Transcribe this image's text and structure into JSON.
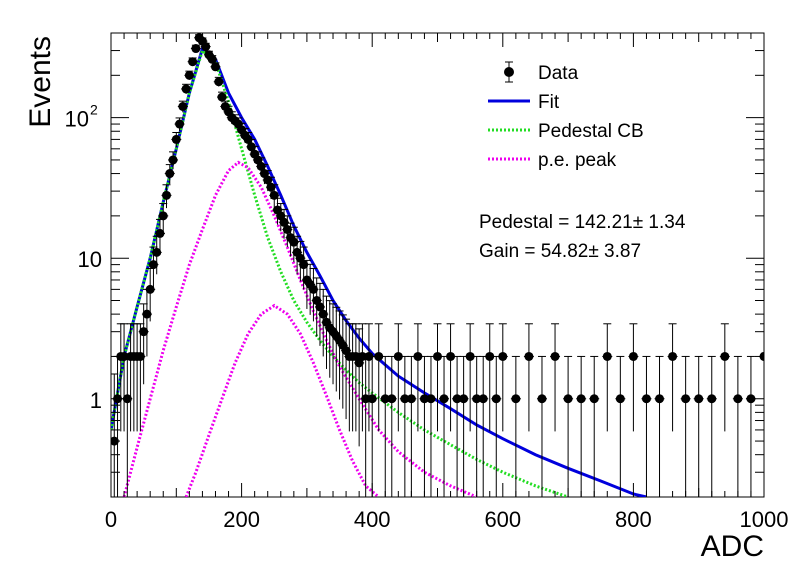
{
  "chart_data": {
    "type": "line",
    "xlabel": "ADC",
    "ylabel": "Events",
    "xlim": [
      0,
      1000
    ],
    "ylim": [
      0.2,
      400
    ],
    "yscale": "log",
    "grid": false,
    "legend_position": "top-right",
    "x_ticks": [
      "0",
      "200",
      "400",
      "600",
      "800",
      "1000"
    ],
    "y_ticks": [
      {
        "value": 1,
        "label": "1",
        "exp": ""
      },
      {
        "value": 10,
        "label": "10",
        "exp": ""
      },
      {
        "value": 100,
        "label": "10",
        "exp": "2"
      }
    ],
    "legend": [
      {
        "label": "Data",
        "style": "marker",
        "color": "#000000"
      },
      {
        "label": "Fit",
        "style": "solid",
        "color": "#0000dd"
      },
      {
        "label": "Pedestal CB",
        "style": "dotted",
        "color": "#22dd22"
      },
      {
        "label": "p.e. peak",
        "style": "dotted",
        "color": "#ee00ee"
      }
    ],
    "annotations": [
      "Pedestal = 142.21± 1.34",
      "Gain = 54.82± 3.87"
    ],
    "series": [
      {
        "name": "Data",
        "style": "points",
        "color": "#000000",
        "x": [
          5,
          10,
          15,
          20,
          25,
          30,
          35,
          40,
          45,
          50,
          55,
          60,
          65,
          70,
          75,
          80,
          85,
          90,
          95,
          100,
          105,
          110,
          115,
          120,
          125,
          130,
          135,
          140,
          145,
          150,
          155,
          160,
          165,
          170,
          175,
          180,
          185,
          190,
          195,
          200,
          205,
          210,
          215,
          220,
          225,
          230,
          235,
          240,
          245,
          250,
          255,
          260,
          265,
          270,
          275,
          280,
          285,
          290,
          295,
          300,
          305,
          310,
          315,
          320,
          325,
          330,
          335,
          340,
          345,
          350,
          355,
          360,
          365,
          370,
          375,
          380,
          385,
          390,
          395,
          400,
          410,
          420,
          430,
          440,
          450,
          460,
          470,
          480,
          490,
          500,
          510,
          520,
          530,
          540,
          550,
          560,
          570,
          580,
          590,
          600,
          620,
          640,
          660,
          680,
          700,
          720,
          740,
          760,
          780,
          800,
          820,
          840,
          860,
          880,
          900,
          920,
          940,
          960,
          980,
          1000
        ],
        "y": [
          0.5,
          1,
          2,
          2,
          1,
          2,
          2,
          2,
          2,
          3,
          4,
          6,
          9,
          11,
          15,
          20,
          28,
          40,
          50,
          70,
          90,
          120,
          160,
          200,
          250,
          310,
          370,
          350,
          320,
          280,
          260,
          230,
          180,
          140,
          120,
          110,
          100,
          95,
          90,
          82,
          75,
          70,
          62,
          55,
          50,
          45,
          40,
          36,
          32,
          28,
          22,
          20,
          18,
          16,
          14,
          13,
          11,
          10,
          9,
          7,
          6.5,
          6,
          5,
          4.5,
          4,
          3.5,
          3.2,
          3,
          2.8,
          2.6,
          2.4,
          2.2,
          2,
          2,
          2,
          1.8,
          2,
          1,
          2,
          1,
          2,
          1,
          1,
          2,
          1,
          1,
          2,
          1,
          1,
          2,
          1,
          2,
          1,
          1,
          2,
          1,
          1,
          2,
          1,
          2,
          1,
          2,
          1,
          2,
          1,
          1,
          1,
          2,
          1,
          2,
          1,
          1,
          2,
          1,
          1,
          1,
          2,
          1,
          1,
          2
        ]
      },
      {
        "name": "Fit",
        "style": "solid",
        "color": "#0000dd",
        "x": [
          0,
          20,
          40,
          60,
          80,
          100,
          120,
          140,
          160,
          180,
          200,
          220,
          240,
          260,
          280,
          300,
          320,
          340,
          360,
          380,
          400,
          440,
          480,
          520,
          560,
          600,
          650,
          700,
          750,
          800,
          820
        ],
        "y": [
          0.6,
          2,
          4.5,
          10,
          25,
          60,
          150,
          310,
          260,
          150,
          100,
          70,
          45,
          28,
          17,
          11,
          7.5,
          5,
          3.6,
          2.7,
          2.1,
          1.45,
          1.1,
          0.85,
          0.65,
          0.52,
          0.4,
          0.32,
          0.26,
          0.21,
          0.2
        ]
      },
      {
        "name": "Pedestal CB",
        "style": "dotted",
        "color": "#22dd22",
        "x": [
          0,
          20,
          40,
          60,
          80,
          100,
          120,
          140,
          160,
          180,
          200,
          220,
          240,
          260,
          280,
          300,
          320,
          340,
          360,
          380,
          400,
          440,
          480,
          520,
          560,
          600,
          650,
          700
        ],
        "y": [
          0.6,
          2,
          4.5,
          10,
          25,
          60,
          150,
          300,
          250,
          130,
          60,
          28,
          14,
          8,
          5,
          3.5,
          2.6,
          2,
          1.6,
          1.3,
          1.1,
          0.8,
          0.6,
          0.47,
          0.37,
          0.3,
          0.24,
          0.2
        ]
      },
      {
        "name": "p.e. peak",
        "style": "dotted",
        "color": "#ee00ee",
        "x": [
          20,
          40,
          60,
          80,
          100,
          120,
          140,
          160,
          180,
          195,
          210,
          230,
          250,
          270,
          290,
          310,
          330,
          350,
          380,
          410,
          440,
          480,
          520,
          560
        ],
        "y": [
          0.2,
          0.45,
          1,
          2.2,
          4.5,
          9,
          16,
          28,
          42,
          48,
          44,
          32,
          20,
          12,
          7,
          4.2,
          2.6,
          1.7,
          1,
          0.6,
          0.42,
          0.3,
          0.24,
          0.2
        ]
      },
      {
        "name": "p.e. peak (2nd)",
        "style": "dotted",
        "color": "#ee00ee",
        "x": [
          115,
          130,
          150,
          170,
          190,
          210,
          230,
          250,
          270,
          290,
          310,
          330,
          350,
          370,
          390,
          410
        ],
        "y": [
          0.2,
          0.3,
          0.55,
          1,
          1.8,
          2.9,
          4,
          4.6,
          4,
          2.9,
          1.8,
          1.05,
          0.6,
          0.36,
          0.24,
          0.2
        ]
      }
    ]
  }
}
